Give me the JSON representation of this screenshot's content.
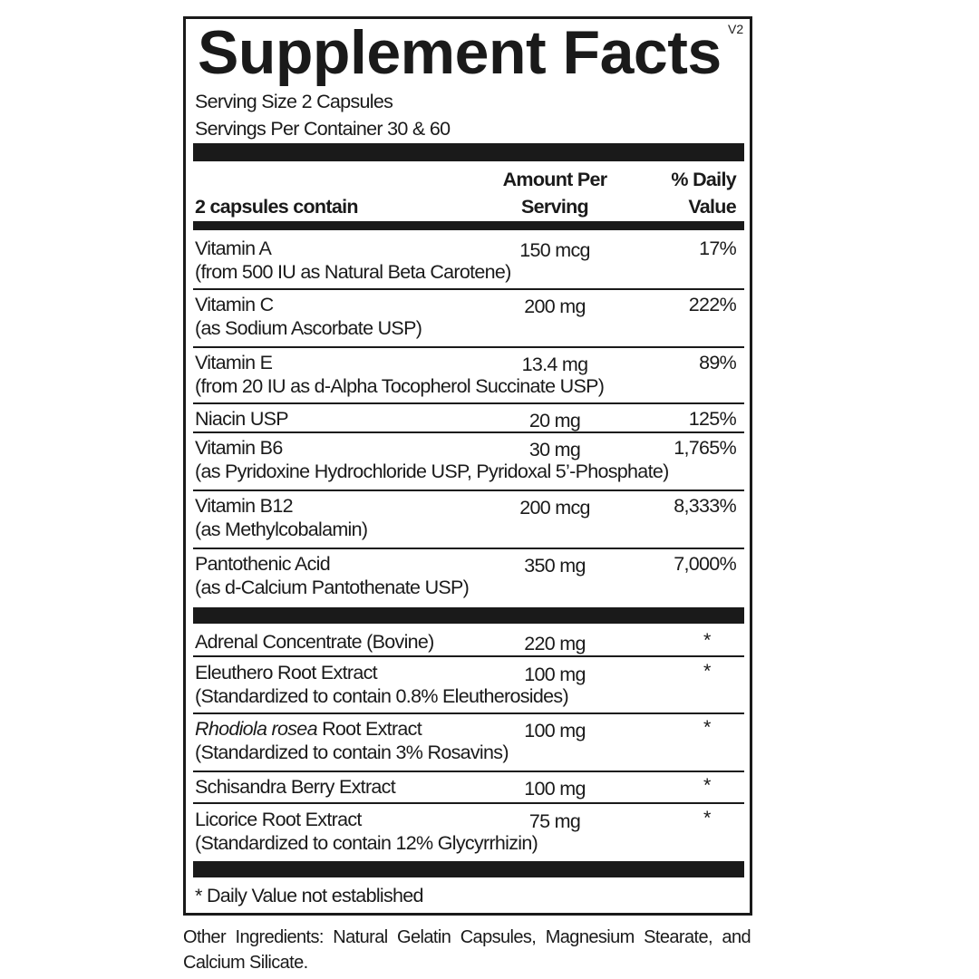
{
  "header": {
    "title": "Supplement Facts",
    "version": "V2",
    "serving_size": "Serving Size 2 Capsules",
    "servings_per_container": "Servings Per Container 30 & 60"
  },
  "columns": {
    "contains": "2 capsules contain",
    "amount_line1": "Amount Per",
    "amount_line2": "Serving",
    "dv_line1": "% Daily",
    "dv_line2": "Value"
  },
  "vitamins": [
    {
      "name": "Vitamin A",
      "sub": "(from 500 IU as Natural Beta Carotene)",
      "amount": "150 mcg",
      "dv": "17%"
    },
    {
      "name": "Vitamin C",
      "sub": "(as Sodium Ascorbate USP)",
      "amount": "200 mg",
      "dv": "222%"
    },
    {
      "name": "Vitamin E",
      "sub": "(from 20 IU as d-Alpha Tocopherol Succinate USP)",
      "amount": "13.4 mg",
      "dv": "89%"
    },
    {
      "name": "Niacin USP",
      "sub": "",
      "amount": "20 mg",
      "dv": "125%"
    },
    {
      "name": "Vitamin B6",
      "sub": "(as Pyridoxine Hydrochloride USP, Pyridoxal 5’-Phosphate)",
      "amount": "30 mg",
      "dv": "1,765%"
    },
    {
      "name": "Vitamin B12",
      "sub": "(as Methylcobalamin)",
      "amount": "200 mcg",
      "dv": "8,333%"
    },
    {
      "name": "Pantothenic Acid",
      "sub": "(as d-Calcium Pantothenate USP)",
      "amount": "350 mg",
      "dv": "7,000%"
    }
  ],
  "botanicals": [
    {
      "name_italic": "",
      "name": "Adrenal Concentrate  (Bovine)",
      "sub": "",
      "amount": "220 mg",
      "dv": "*"
    },
    {
      "name_italic": "",
      "name": "Eleuthero Root Extract",
      "sub": "(Standardized to contain 0.8% Eleutherosides)",
      "amount": "100 mg",
      "dv": "*"
    },
    {
      "name_italic": "Rhodiola rosea",
      "name": " Root Extract",
      "sub": "(Standardized to contain 3% Rosavins)",
      "amount": "100 mg",
      "dv": "*"
    },
    {
      "name_italic": "",
      "name": "Schisandra Berry Extract",
      "sub": "",
      "amount": "100 mg",
      "dv": "*"
    },
    {
      "name_italic": "",
      "name": "Licorice Root Extract",
      "sub": "(Standardized to contain 12% Glycyrrhizin)",
      "amount": "75 mg",
      "dv": "*"
    }
  ],
  "footnote": "* Daily Value not established",
  "other_ingredients": "Other Ingredients: Natural Gelatin Capsules, Magnesium Stearate, and Calcium Silicate."
}
